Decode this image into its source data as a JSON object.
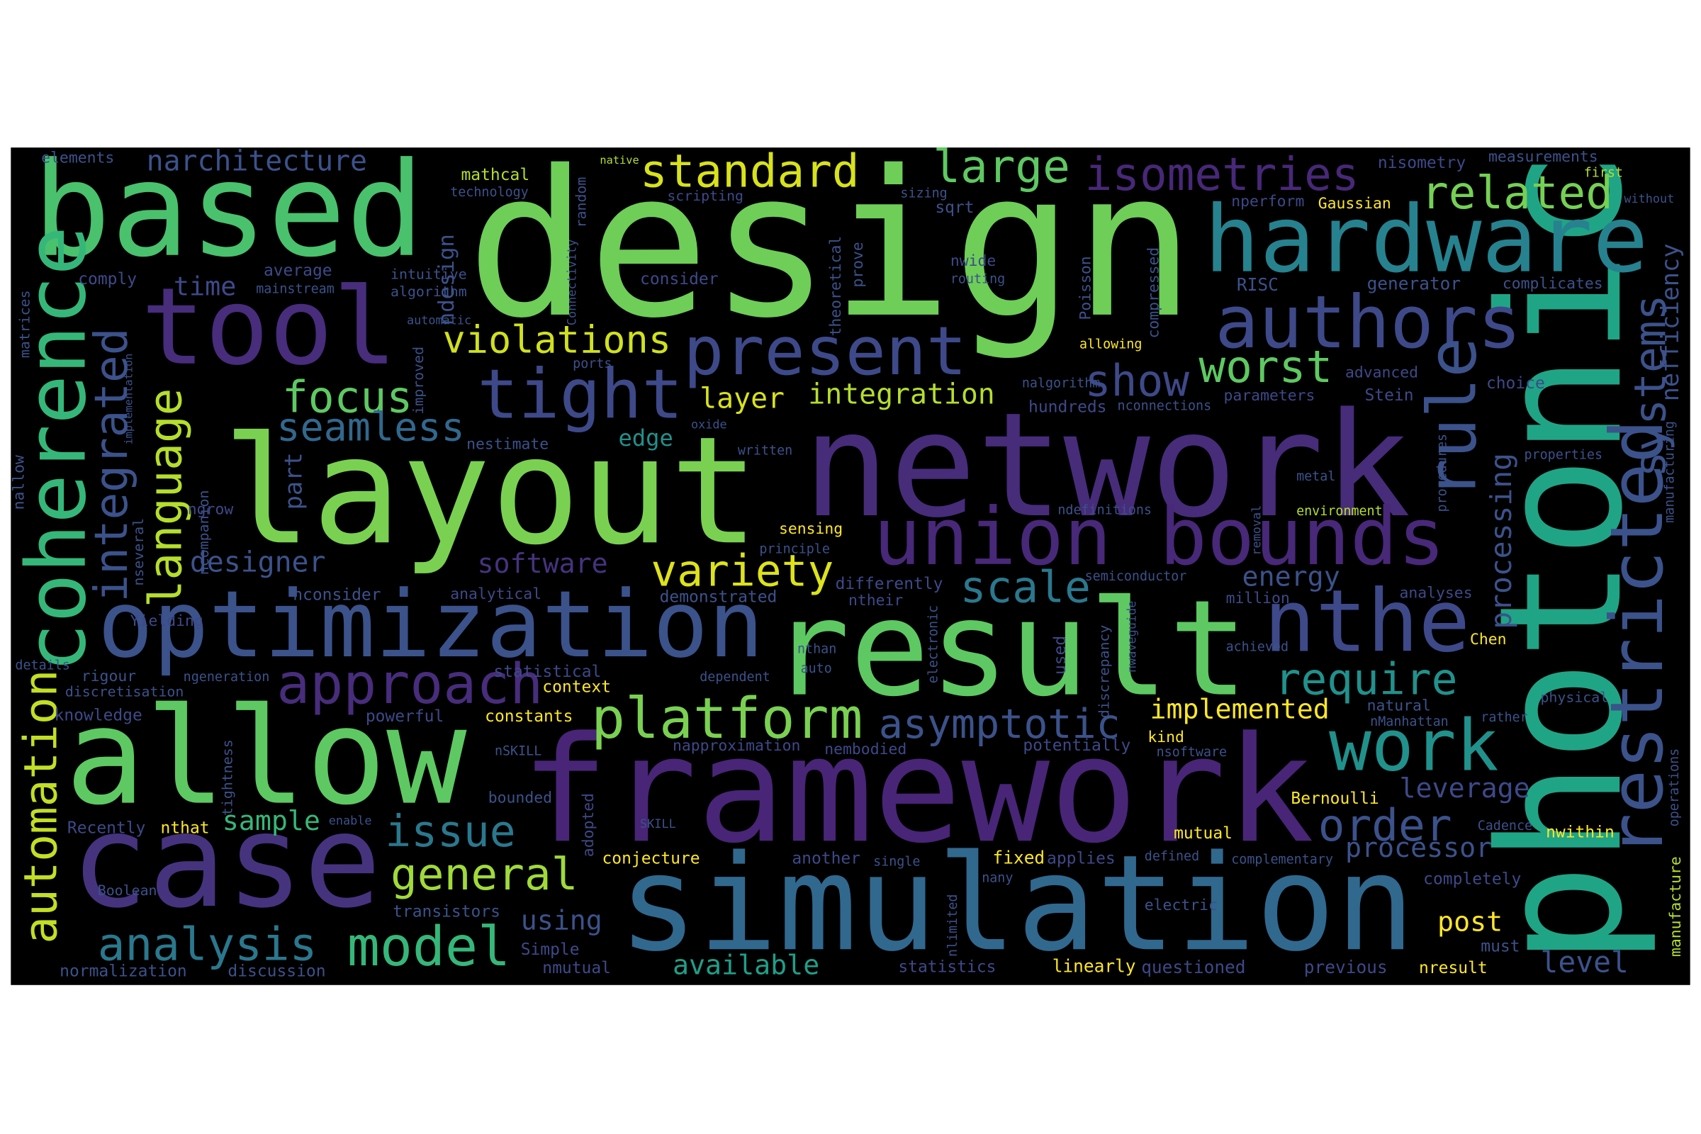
{
  "words": [
    {
      "text": "design",
      "color": "#6ece58"
    },
    {
      "text": "layout",
      "color": "#7ad151"
    },
    {
      "text": "network",
      "color": "#472c7a"
    },
    {
      "text": "framework",
      "color": "#482576"
    },
    {
      "text": "simulation",
      "color": "#31688e"
    },
    {
      "text": "result",
      "color": "#5ec962"
    },
    {
      "text": "allow",
      "color": "#5ec962"
    },
    {
      "text": "case",
      "color": "#46337e"
    },
    {
      "text": "based",
      "color": "#4ac16d"
    },
    {
      "text": "tool",
      "color": "#472d7b"
    },
    {
      "text": "optimization",
      "color": "#3b528b"
    },
    {
      "text": "photonic",
      "color": "#20a486"
    },
    {
      "text": "hardware",
      "color": "#26828e"
    },
    {
      "text": "authors",
      "color": "#3e4989"
    },
    {
      "text": "union bounds",
      "color": "#482878"
    },
    {
      "text": "tight",
      "color": "#3e4989"
    },
    {
      "text": "present",
      "color": "#3e4989"
    },
    {
      "text": "coherence",
      "color": "#35b779"
    },
    {
      "text": "restricted",
      "color": "#3b528b"
    },
    {
      "text": "rule",
      "color": "#3b528b"
    },
    {
      "text": "approach",
      "color": "#472d7b"
    },
    {
      "text": "platform",
      "color": "#7ad151"
    },
    {
      "text": "asymptotic",
      "color": "#3b528b"
    },
    {
      "text": "nthe",
      "color": "#3e4989"
    },
    {
      "text": "work",
      "color": "#21918c"
    },
    {
      "text": "require",
      "color": "#21918c"
    },
    {
      "text": "scale",
      "color": "#2a788e"
    },
    {
      "text": "variety",
      "color": "#dde318"
    },
    {
      "text": "focus",
      "color": "#5ec962"
    },
    {
      "text": "violations",
      "color": "#d0e11c"
    },
    {
      "text": "standard",
      "color": "#d8e219"
    },
    {
      "text": "large",
      "color": "#5ec962"
    },
    {
      "text": "isometries",
      "color": "#482878"
    },
    {
      "text": "related",
      "color": "#75d054"
    },
    {
      "text": "integrated",
      "color": "#3b528b"
    },
    {
      "text": "language",
      "color": "#b5de2b"
    },
    {
      "text": "automation",
      "color": "#c2df23"
    },
    {
      "text": "seamless",
      "color": "#31688e"
    },
    {
      "text": "general",
      "color": "#a0da39"
    },
    {
      "text": "issue",
      "color": "#2a788e"
    },
    {
      "text": "analysis",
      "color": "#2a788e"
    },
    {
      "text": "model",
      "color": "#35b779"
    },
    {
      "text": "show",
      "color": "#3e4989"
    },
    {
      "text": "worst",
      "color": "#5ec962"
    },
    {
      "text": "systems",
      "color": "#3b528b"
    },
    {
      "text": "nefficiency",
      "color": "#3b528b"
    },
    {
      "text": "integration",
      "color": "#b5de2b"
    },
    {
      "text": "layer",
      "color": "#d8e219"
    },
    {
      "text": "edge",
      "color": "#21918c"
    },
    {
      "text": "software",
      "color": "#46337e"
    },
    {
      "text": "designer",
      "color": "#3b528b"
    },
    {
      "text": "part",
      "color": "#3b528b"
    },
    {
      "text": "energy",
      "color": "#3b528b"
    },
    {
      "text": "processing",
      "color": "#3b528b"
    },
    {
      "text": "implemented",
      "color": "#fde725"
    },
    {
      "text": "leverage",
      "color": "#3e4989"
    },
    {
      "text": "order",
      "color": "#3b528b"
    },
    {
      "text": "processor",
      "color": "#3b528b"
    },
    {
      "text": "sample",
      "color": "#35b779"
    },
    {
      "text": "available",
      "color": "#1f9e89"
    },
    {
      "text": "using",
      "color": "#3b528b"
    },
    {
      "text": "post",
      "color": "#fde725"
    },
    {
      "text": "level",
      "color": "#3b528b"
    },
    {
      "text": "narchitecture",
      "color": "#3b528b"
    },
    {
      "text": "time",
      "color": "#3e4989"
    },
    {
      "text": "ndesign",
      "color": "#3b528b"
    },
    {
      "text": "elements",
      "color": "#3b528b"
    },
    {
      "text": "mathcal",
      "color": "#b5de2b"
    },
    {
      "text": "technology",
      "color": "#3b528b"
    },
    {
      "text": "random",
      "color": "#3b528b"
    },
    {
      "text": "native",
      "color": "#b5de2b"
    },
    {
      "text": "scripting",
      "color": "#3e4989"
    },
    {
      "text": "sizing",
      "color": "#3b528b"
    },
    {
      "text": "sqrt",
      "color": "#3b528b"
    },
    {
      "text": "nperform",
      "color": "#3e4989"
    },
    {
      "text": "Gaussian",
      "color": "#fde725"
    },
    {
      "text": "nisometry",
      "color": "#3e4989"
    },
    {
      "text": "measurements",
      "color": "#3b528b"
    },
    {
      "text": "first",
      "color": "#b5de2b"
    },
    {
      "text": "without",
      "color": "#3b528b"
    },
    {
      "text": "comply",
      "color": "#3e4989"
    },
    {
      "text": "average",
      "color": "#3e4989"
    },
    {
      "text": "intuitive",
      "color": "#3b528b"
    },
    {
      "text": "mainstream",
      "color": "#3b528b"
    },
    {
      "text": "algorithm",
      "color": "#3b528b"
    },
    {
      "text": "consider",
      "color": "#3e4989"
    },
    {
      "text": "nwide",
      "color": "#3e4989"
    },
    {
      "text": "routing",
      "color": "#3b528b"
    },
    {
      "text": "theoretical",
      "color": "#3b528b"
    },
    {
      "text": "prove",
      "color": "#3b528b"
    },
    {
      "text": "compressed",
      "color": "#3b528b"
    },
    {
      "text": "Poisson",
      "color": "#3b528b"
    },
    {
      "text": "RISC",
      "color": "#3b528b"
    },
    {
      "text": "generator",
      "color": "#3b528b"
    },
    {
      "text": "complicates",
      "color": "#3b528b"
    },
    {
      "text": "matrices",
      "color": "#3b528b"
    },
    {
      "text": "automatic",
      "color": "#3b528b"
    },
    {
      "text": "implementation",
      "color": "#3b528b"
    },
    {
      "text": "improved",
      "color": "#3b528b"
    },
    {
      "text": "ports",
      "color": "#3b528b"
    },
    {
      "text": "allowing",
      "color": "#fde725"
    },
    {
      "text": "nalgorithm",
      "color": "#3b528b"
    },
    {
      "text": "hundreds",
      "color": "#3e4989"
    },
    {
      "text": "nconnections",
      "color": "#3b528b"
    },
    {
      "text": "parameters",
      "color": "#3e4989"
    },
    {
      "text": "advanced",
      "color": "#3e4989"
    },
    {
      "text": "Stein",
      "color": "#3e4989"
    },
    {
      "text": "choice",
      "color": "#3e4989"
    },
    {
      "text": "nestimate",
      "color": "#3b528b"
    },
    {
      "text": "oxide",
      "color": "#3b528b"
    },
    {
      "text": "written",
      "color": "#3b528b"
    },
    {
      "text": "procedures",
      "color": "#3b528b"
    },
    {
      "text": "properties",
      "color": "#3b528b"
    },
    {
      "text": "metal",
      "color": "#3b528b"
    },
    {
      "text": "nallow",
      "color": "#3b528b"
    },
    {
      "text": "ncompanion",
      "color": "#3b528b"
    },
    {
      "text": "nseveral",
      "color": "#3b528b"
    },
    {
      "text": "ngrow",
      "color": "#3e4989"
    },
    {
      "text": "ndefinitions",
      "color": "#3b528b"
    },
    {
      "text": "environment",
      "color": "#b5de2b"
    },
    {
      "text": "removal",
      "color": "#3b528b"
    },
    {
      "text": "sensing",
      "color": "#fde725"
    },
    {
      "text": "principle",
      "color": "#3b528b"
    },
    {
      "text": "manufacturing",
      "color": "#3b528b"
    },
    {
      "text": "semiconductor",
      "color": "#3b528b"
    },
    {
      "text": "nconsider",
      "color": "#3b528b"
    },
    {
      "text": "analytical",
      "color": "#3e4989"
    },
    {
      "text": "demonstrated",
      "color": "#3b528b"
    },
    {
      "text": "differently",
      "color": "#3e4989"
    },
    {
      "text": "ntheir",
      "color": "#3e4989"
    },
    {
      "text": "Yielding",
      "color": "#3e4989"
    },
    {
      "text": "nwaveguide",
      "color": "#3b528b"
    },
    {
      "text": "million",
      "color": "#3e4989"
    },
    {
      "text": "analyses",
      "color": "#3e4989"
    },
    {
      "text": "tightness",
      "color": "#3b528b"
    },
    {
      "text": "details",
      "color": "#3b528b"
    },
    {
      "text": "rigour",
      "color": "#3b528b"
    },
    {
      "text": "ngeneration",
      "color": "#3b528b"
    },
    {
      "text": "discretisation",
      "color": "#3b528b"
    },
    {
      "text": "knowledge",
      "color": "#3e4989"
    },
    {
      "text": "statistical",
      "color": "#3e4989"
    },
    {
      "text": "context",
      "color": "#fde725"
    },
    {
      "text": "dependent",
      "color": "#3b528b"
    },
    {
      "text": "nthan",
      "color": "#3b528b"
    },
    {
      "text": "auto",
      "color": "#3b528b"
    },
    {
      "text": "electronic",
      "color": "#3b528b"
    },
    {
      "text": "used",
      "color": "#3e4989"
    },
    {
      "text": "discrepancy",
      "color": "#3b528b"
    },
    {
      "text": "achieved",
      "color": "#3b528b"
    },
    {
      "text": "Chen",
      "color": "#fde725"
    },
    {
      "text": "powerful",
      "color": "#3e4989"
    },
    {
      "text": "constants",
      "color": "#fde725"
    },
    {
      "text": "natural",
      "color": "#3b528b"
    },
    {
      "text": "physical",
      "color": "#3b528b"
    },
    {
      "text": "rather",
      "color": "#3b528b"
    },
    {
      "text": "nManhattan",
      "color": "#3b528b"
    },
    {
      "text": "napproximation",
      "color": "#3e4989"
    },
    {
      "text": "nembodied",
      "color": "#3e4989"
    },
    {
      "text": "potentially",
      "color": "#3e4989"
    },
    {
      "text": "kind",
      "color": "#fde725"
    },
    {
      "text": "nsoftware",
      "color": "#3b528b"
    },
    {
      "text": "nSKILL",
      "color": "#3b528b"
    },
    {
      "text": "adopted",
      "color": "#3e4989"
    },
    {
      "text": "Recently",
      "color": "#3e4989"
    },
    {
      "text": "nthat",
      "color": "#fde725"
    },
    {
      "text": "enable",
      "color": "#3b528b"
    },
    {
      "text": "bounded",
      "color": "#3b528b"
    },
    {
      "text": "SKILL",
      "color": "#3b528b"
    },
    {
      "text": "Bernoulli",
      "color": "#fde725"
    },
    {
      "text": "mutual",
      "color": "#fde725"
    },
    {
      "text": "nwithin",
      "color": "#fde725"
    },
    {
      "text": "Cadence",
      "color": "#3b528b"
    },
    {
      "text": "operations",
      "color": "#3b528b"
    },
    {
      "text": "conjecture",
      "color": "#fde725"
    },
    {
      "text": "another",
      "color": "#3e4989"
    },
    {
      "text": "single",
      "color": "#3b528b"
    },
    {
      "text": "fixed",
      "color": "#fde725"
    },
    {
      "text": "applies",
      "color": "#3e4989"
    },
    {
      "text": "defined",
      "color": "#3b528b"
    },
    {
      "text": "complementary",
      "color": "#3b528b"
    },
    {
      "text": "manufacture",
      "color": "#b5de2b"
    },
    {
      "text": "Boolean",
      "color": "#3b528b"
    },
    {
      "text": "nany",
      "color": "#3b528b"
    },
    {
      "text": "completely",
      "color": "#3e4989"
    },
    {
      "text": "nlimited",
      "color": "#3b528b"
    },
    {
      "text": "electric",
      "color": "#3b528b"
    },
    {
      "text": "transistors",
      "color": "#3b528b"
    },
    {
      "text": "Simple",
      "color": "#3e4989"
    },
    {
      "text": "nmutual",
      "color": "#3e4989"
    },
    {
      "text": "normalization",
      "color": "#3b528b"
    },
    {
      "text": "discussion",
      "color": "#3b528b"
    },
    {
      "text": "statistics",
      "color": "#3e4989"
    },
    {
      "text": "linearly",
      "color": "#fde725"
    },
    {
      "text": "questioned",
      "color": "#3e4989"
    },
    {
      "text": "previous",
      "color": "#3e4989"
    },
    {
      "text": "nresult",
      "color": "#fde725"
    },
    {
      "text": "must",
      "color": "#3b528b"
    },
    {
      "text": "Connectivity",
      "color": "#3b528b"
    }
  ]
}
